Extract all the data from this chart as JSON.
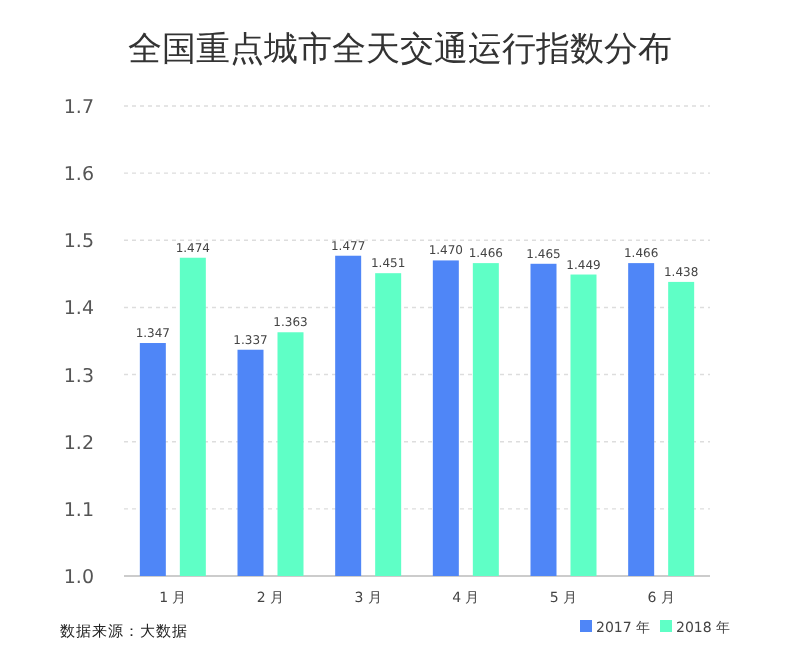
{
  "chart_data": {
    "type": "bar",
    "title": "全国重点城市全天交通运行指数分布",
    "categories": [
      "1 月",
      "2 月",
      "3 月",
      "4 月",
      "5 月",
      "6 月"
    ],
    "series": [
      {
        "name": "2017 年",
        "color": "#4f86f7",
        "values": [
          1.347,
          1.337,
          1.477,
          1.47,
          1.465,
          1.466
        ],
        "value_labels": [
          "1.347",
          "1.337",
          "1.477",
          "1.470",
          "1.465",
          "1.466"
        ]
      },
      {
        "name": "2018 年",
        "color": "#5fffc6",
        "values": [
          1.474,
          1.363,
          1.451,
          1.466,
          1.449,
          1.438
        ],
        "value_labels": [
          "1.474",
          "1.363",
          "1.451",
          "1.466",
          "1.449",
          "1.438"
        ]
      }
    ],
    "ylim": [
      1.0,
      1.7
    ],
    "yticks": [
      {
        "value": 1.0,
        "label": "1.0"
      },
      1.1,
      1.2,
      1.3,
      1.4,
      1.5,
      1.6,
      1.7
    ],
    "grid": "y",
    "legend": "bottom right",
    "annotations": [
      "数据来源：大数据"
    ]
  }
}
